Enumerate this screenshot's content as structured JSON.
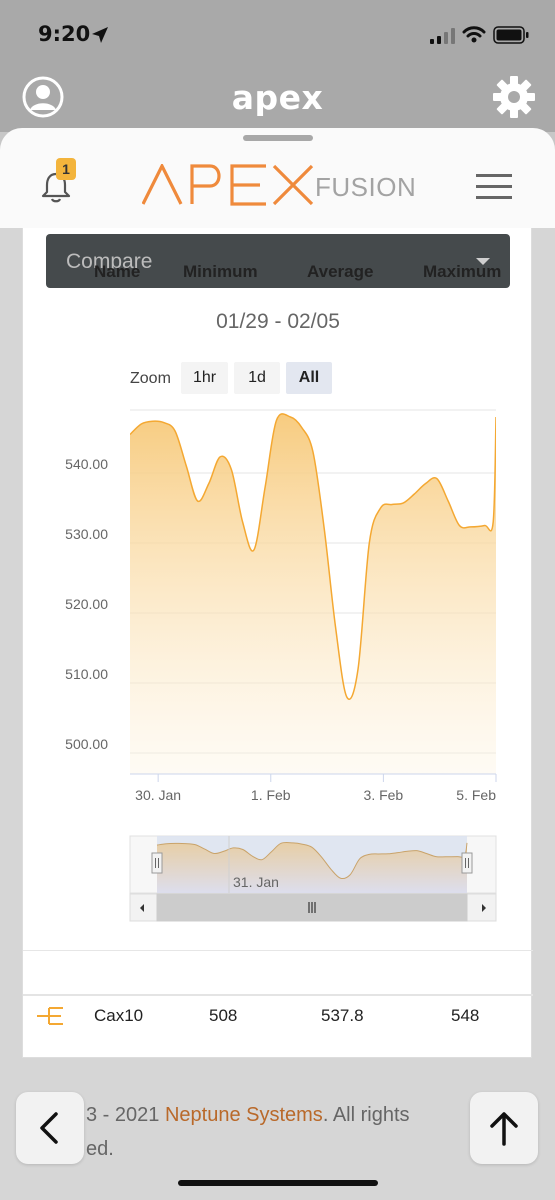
{
  "status": {
    "time": "9:20"
  },
  "app": {
    "title": "apex"
  },
  "header": {
    "notification_count": "1",
    "logo_fusion": "FUSION"
  },
  "compare": {
    "label": "Compare"
  },
  "date_range": "01/29 - 02/05",
  "zoom": {
    "label": "Zoom",
    "options": [
      "1hr",
      "1d",
      "All"
    ],
    "active": "All"
  },
  "chart_data": {
    "type": "area",
    "title": "",
    "xlabel": "",
    "ylabel": "",
    "ylim": [
      497,
      549
    ],
    "yticks": [
      "540.00",
      "530.00",
      "520.00",
      "510.00",
      "500.00"
    ],
    "xticks": [
      "30. Jan",
      "1. Feb",
      "3. Feb",
      "5. Feb"
    ],
    "series": [
      {
        "name": "Cax10",
        "color": "#f4a832",
        "points": [
          [
            0.0,
            545.5
          ],
          [
            0.2,
            547.0
          ],
          [
            0.4,
            547.4
          ],
          [
            0.6,
            547.2
          ],
          [
            0.8,
            546.0
          ],
          [
            1.0,
            541.0
          ],
          [
            1.2,
            536.0
          ],
          [
            1.4,
            538.5
          ],
          [
            1.6,
            542.3
          ],
          [
            1.8,
            540.5
          ],
          [
            2.0,
            533.0
          ],
          [
            2.2,
            529.0
          ],
          [
            2.4,
            538.0
          ],
          [
            2.6,
            547.5
          ],
          [
            2.85,
            548.0
          ],
          [
            3.05,
            546.5
          ],
          [
            3.25,
            543.0
          ],
          [
            3.45,
            532.0
          ],
          [
            3.65,
            518.0
          ],
          [
            3.85,
            508.0
          ],
          [
            4.05,
            512.0
          ],
          [
            4.25,
            530.0
          ],
          [
            4.45,
            535.0
          ],
          [
            4.65,
            535.5
          ],
          [
            4.85,
            535.7
          ],
          [
            5.05,
            537.0
          ],
          [
            5.25,
            538.5
          ],
          [
            5.45,
            539.2
          ],
          [
            5.65,
            536.0
          ],
          [
            5.85,
            532.5
          ],
          [
            6.05,
            532.3
          ],
          [
            6.3,
            532.5
          ],
          [
            6.45,
            533.0
          ],
          [
            6.5,
            548.0
          ]
        ]
      }
    ],
    "navigator": {
      "label": "31. Jan"
    }
  },
  "stats": {
    "headers": {
      "name": "Name",
      "minimum": "Minimum",
      "average": "Average",
      "maximum": "Maximum"
    },
    "rows": [
      {
        "name": "Cax10",
        "minimum": "508",
        "average": "537.8",
        "maximum": "548"
      }
    ]
  },
  "footer": {
    "line1_prefix": "3 - 2021 ",
    "company": "Neptune Systems",
    "line1_suffix": ". All rights",
    "line2": "ed."
  }
}
